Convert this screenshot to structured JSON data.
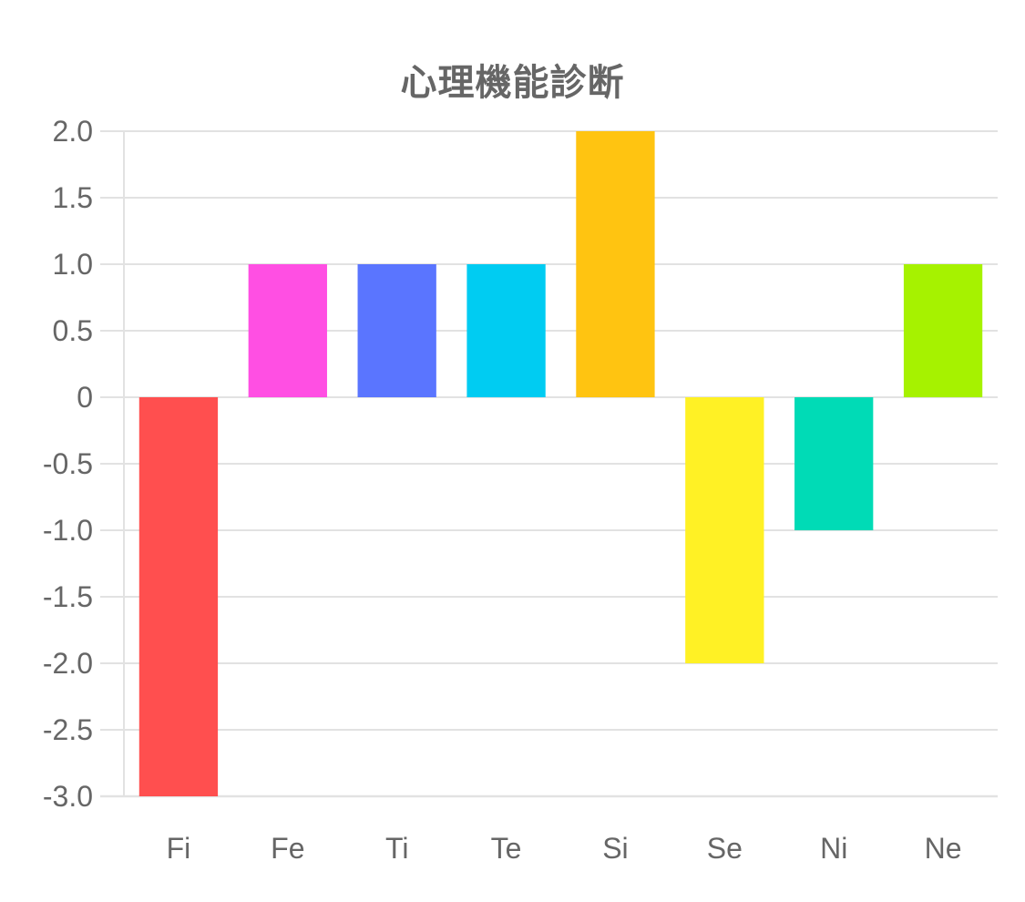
{
  "chart_data": {
    "type": "bar",
    "title": "心理機能診断",
    "xlabel": "",
    "ylabel": "",
    "categories": [
      "Fi",
      "Fe",
      "Ti",
      "Te",
      "Si",
      "Se",
      "Ni",
      "Ne"
    ],
    "values": [
      -3.0,
      1.0,
      1.0,
      1.0,
      2.0,
      -2.0,
      -1.0,
      1.0
    ],
    "colors": [
      "#ff4f4f",
      "#ff4fe3",
      "#5a75ff",
      "#00ccf2",
      "#ffc411",
      "#fff125",
      "#00dbb6",
      "#a6f200"
    ],
    "ylim": [
      -3.0,
      2.0
    ],
    "yticks": [
      "2.0",
      "1.5",
      "1.0",
      "0.5",
      "0",
      "-0.5",
      "-1.0",
      "-1.5",
      "-2.0",
      "-2.5",
      "-3.0"
    ],
    "ytick_values": [
      2.0,
      1.5,
      1.0,
      0.5,
      0,
      -0.5,
      -1.0,
      -1.5,
      -2.0,
      -2.5,
      -3.0
    ],
    "grid": true,
    "legend": "none",
    "text_color": "#666666",
    "grid_color": "#e2e2e2"
  }
}
